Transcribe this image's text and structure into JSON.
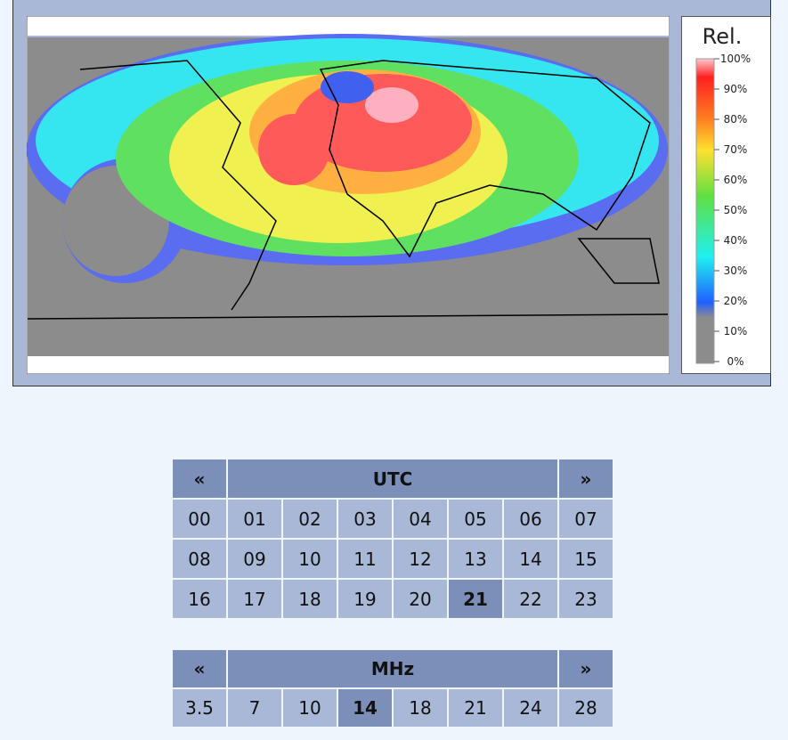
{
  "legend": {
    "title": "Rel.",
    "labels": [
      "100%",
      "90%",
      "80%",
      "70%",
      "60%",
      "50%",
      "40%",
      "30%",
      "20%",
      "10%",
      "0%"
    ]
  },
  "utc": {
    "prev": "«",
    "title": "UTC",
    "next": "»",
    "hours": [
      "00",
      "01",
      "02",
      "03",
      "04",
      "05",
      "06",
      "07",
      "08",
      "09",
      "10",
      "11",
      "12",
      "13",
      "14",
      "15",
      "16",
      "17",
      "18",
      "19",
      "20",
      "21",
      "22",
      "23"
    ],
    "selected": "21"
  },
  "mhz": {
    "prev": "«",
    "title": "MHz",
    "next": "»",
    "bands": [
      "3.5",
      "7",
      "10",
      "14",
      "18",
      "21",
      "24",
      "28"
    ],
    "selected": "14"
  }
}
